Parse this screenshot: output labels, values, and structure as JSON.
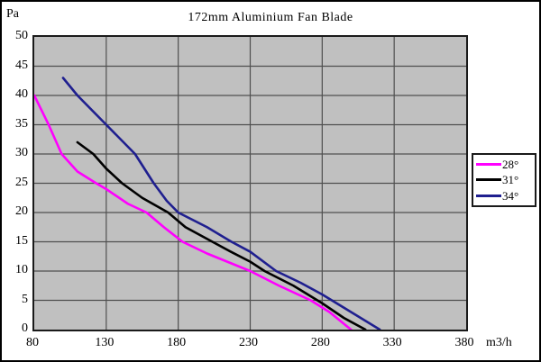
{
  "window": {
    "background": "#ffffff",
    "frame_border_color": "#000000"
  },
  "chart": {
    "title": "172mm Aluminium Fan Blade",
    "y_unit_label": "Pa",
    "x_unit_label": "m3/h",
    "plot_background": "#c0c0c0",
    "grid_color": "#4f4f4f",
    "plot_border_color": "#1a1a1a",
    "text_color": "#000000"
  },
  "chart_data": {
    "type": "line",
    "title": "172mm Aluminium Fan Blade",
    "xlabel": "m3/h",
    "ylabel": "Pa",
    "xlim": [
      80,
      380
    ],
    "ylim": [
      0,
      50
    ],
    "x_ticks": [
      80,
      130,
      180,
      230,
      280,
      330,
      380
    ],
    "y_ticks": [
      0,
      5,
      10,
      15,
      20,
      25,
      30,
      35,
      40,
      45,
      50
    ],
    "grid": true,
    "legend_position": "right",
    "series": [
      {
        "name": "28°",
        "color": "#ff00ff",
        "points": [
          [
            80,
            40
          ],
          [
            90,
            35
          ],
          [
            99,
            30
          ],
          [
            110,
            27
          ],
          [
            123,
            25
          ],
          [
            130,
            24
          ],
          [
            145,
            21.5
          ],
          [
            158,
            20
          ],
          [
            170,
            17.5
          ],
          [
            183,
            15
          ],
          [
            200,
            13
          ],
          [
            215,
            11.5
          ],
          [
            230,
            10
          ],
          [
            250,
            7.5
          ],
          [
            272,
            5
          ],
          [
            285,
            3
          ],
          [
            300,
            0
          ]
        ]
      },
      {
        "name": "31°",
        "color": "#000000",
        "points": [
          [
            110,
            32
          ],
          [
            121,
            30
          ],
          [
            130,
            27.5
          ],
          [
            141,
            25
          ],
          [
            155,
            22.5
          ],
          [
            173,
            20
          ],
          [
            185,
            17.5
          ],
          [
            200,
            15.5
          ],
          [
            215,
            13.5
          ],
          [
            230,
            11.6
          ],
          [
            240,
            10
          ],
          [
            260,
            7.5
          ],
          [
            280,
            4.5
          ],
          [
            295,
            2
          ],
          [
            310,
            0
          ]
        ]
      },
      {
        "name": "34°",
        "color": "#1f1f8f",
        "points": [
          [
            100,
            43
          ],
          [
            110,
            40
          ],
          [
            130,
            35
          ],
          [
            150,
            30
          ],
          [
            163,
            25
          ],
          [
            172,
            22
          ],
          [
            180,
            20
          ],
          [
            200,
            17.5
          ],
          [
            217,
            15
          ],
          [
            230,
            13.3
          ],
          [
            248,
            10
          ],
          [
            265,
            8
          ],
          [
            280,
            6
          ],
          [
            300,
            3
          ],
          [
            320,
            0
          ]
        ]
      }
    ]
  }
}
